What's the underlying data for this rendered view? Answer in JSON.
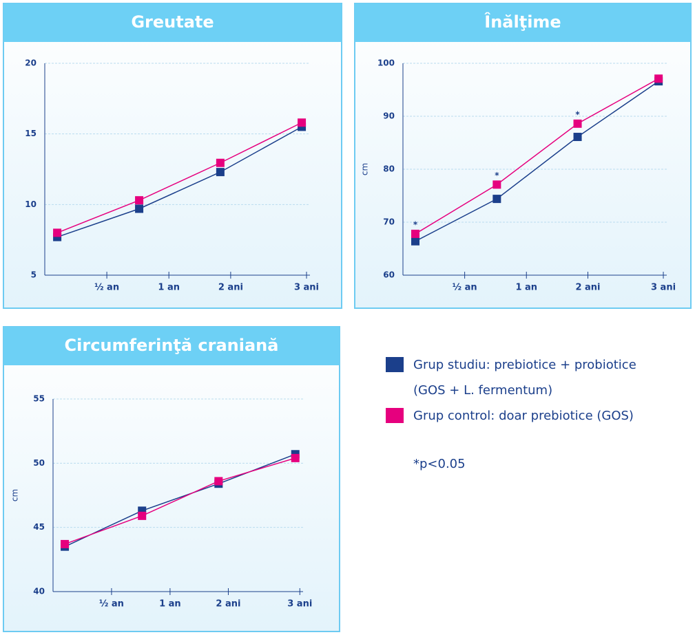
{
  "chart_data": [
    {
      "type": "line",
      "title": "Greutate",
      "categories": [
        "½ an",
        "1 an",
        "2 ani",
        "3 ani"
      ],
      "ylim": [
        5,
        20
      ],
      "yticks": [
        5,
        10,
        15,
        20
      ],
      "grid": true,
      "series": [
        {
          "name": "Grup studiu: prebiotice + probiotice (GOS + L. fermentum)",
          "color": "#1b3f8b",
          "values": [
            7.7,
            9.7,
            12.3,
            15.5
          ]
        },
        {
          "name": "Grup control: doar prebiotice (GOS)",
          "color": "#e6007e",
          "values": [
            8.0,
            10.3,
            12.95,
            15.8
          ]
        }
      ]
    },
    {
      "type": "line",
      "title": "Înălţime",
      "ylabel": "cm",
      "categories": [
        "½ an",
        "1 an",
        "2 ani",
        "3 ani"
      ],
      "ylim": [
        60,
        100
      ],
      "yticks": [
        60,
        70,
        80,
        90,
        100
      ],
      "grid": true,
      "annotations": [
        "*",
        "*",
        "*"
      ],
      "series": [
        {
          "name": "Grup studiu: prebiotice + probiotice (GOS + L. fermentum)",
          "color": "#1b3f8b",
          "values": [
            66.4,
            74.4,
            86.1,
            96.6
          ]
        },
        {
          "name": "Grup control: doar prebiotice (GOS)",
          "color": "#e6007e",
          "values": [
            67.8,
            77.1,
            88.6,
            97.1
          ]
        }
      ]
    },
    {
      "type": "line",
      "title": "Circumferinţă craniană",
      "ylabel": "cm",
      "categories": [
        "½ an",
        "1 an",
        "2 ani",
        "3 ani"
      ],
      "ylim": [
        40,
        55
      ],
      "yticks": [
        40,
        45,
        50,
        55
      ],
      "grid": true,
      "series": [
        {
          "name": "Grup studiu: prebiotice + probiotice (GOS + L. fermentum)",
          "color": "#1b3f8b",
          "values": [
            43.5,
            46.3,
            48.4,
            50.7
          ]
        },
        {
          "name": "Grup control: doar prebiotice (GOS)",
          "color": "#e6007e",
          "values": [
            43.7,
            45.9,
            48.6,
            50.4
          ]
        }
      ]
    }
  ],
  "note": "*p<0.05"
}
